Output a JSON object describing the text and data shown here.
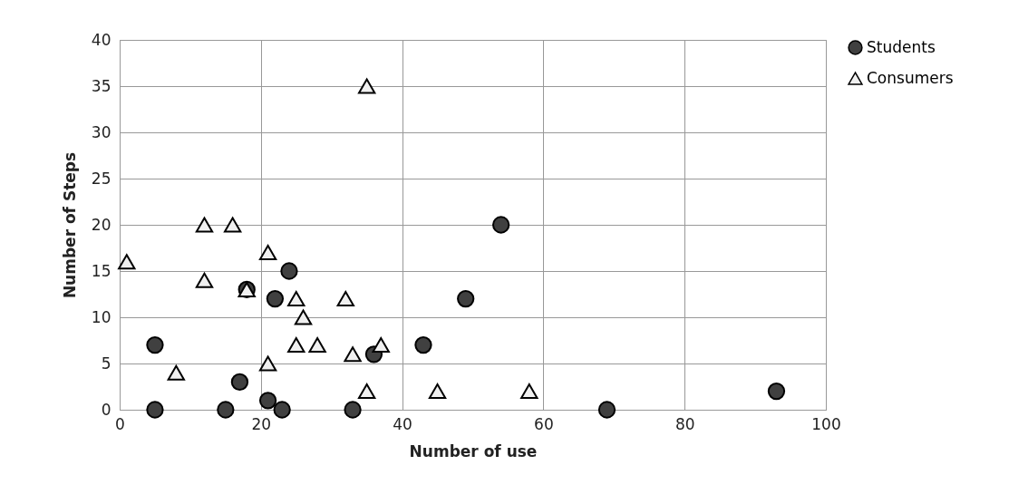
{
  "chart_data": {
    "type": "scatter",
    "xlabel": "Number of use",
    "ylabel": "Number of Steps",
    "xlim": [
      0,
      100
    ],
    "xticks": [
      0,
      20,
      40,
      60,
      80,
      100
    ],
    "ylim": [
      0,
      40
    ],
    "yticks": [
      0,
      5,
      10,
      15,
      20,
      25,
      30,
      35,
      40
    ],
    "grid": true,
    "legend": "right",
    "series": [
      {
        "name": "Students",
        "color": "#404040",
        "marker": "circle",
        "x": [
          5,
          5,
          15,
          17,
          18,
          21,
          22,
          23,
          24,
          33,
          36,
          43,
          49,
          54,
          69,
          93
        ],
        "values": [
          7,
          0,
          0,
          3,
          13,
          1,
          12,
          0,
          15,
          0,
          6,
          7,
          12,
          20,
          0,
          2
        ]
      },
      {
        "name": "Consumers",
        "color": "#f0f0f0",
        "marker": "triangle",
        "x": [
          1,
          8,
          12,
          12,
          16,
          18,
          21,
          21,
          25,
          25,
          26,
          28,
          32,
          33,
          35,
          35,
          37,
          45,
          58
        ],
        "values": [
          16,
          4,
          20,
          14,
          20,
          13,
          17,
          5,
          12,
          7,
          10,
          7,
          12,
          6,
          35,
          2,
          7,
          2,
          2
        ]
      }
    ]
  }
}
